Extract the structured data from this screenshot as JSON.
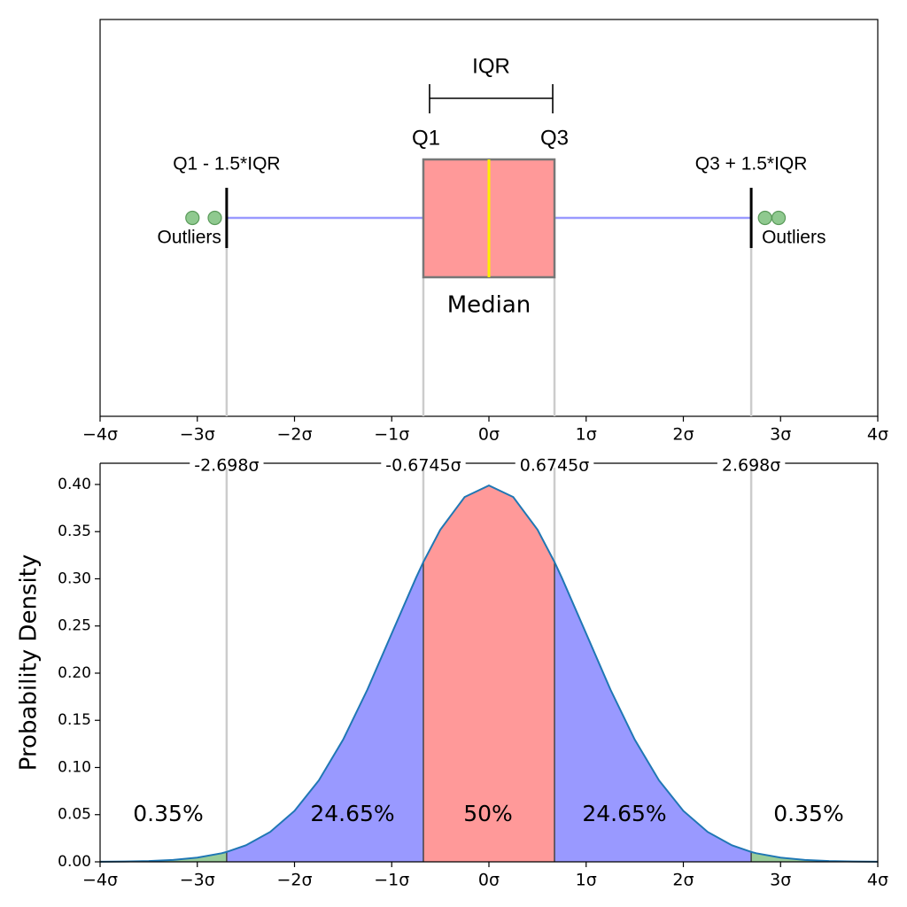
{
  "chart_data": [
    {
      "type": "box",
      "xlim": [
        -4,
        4
      ],
      "xticks": [
        {
          "value": -4,
          "label": "−4σ"
        },
        {
          "value": -3,
          "label": "−3σ"
        },
        {
          "value": -2,
          "label": "−2σ"
        },
        {
          "value": -1,
          "label": "−1σ"
        },
        {
          "value": 0,
          "label": "0σ"
        },
        {
          "value": 1,
          "label": "1σ"
        },
        {
          "value": 2,
          "label": "2σ"
        },
        {
          "value": 3,
          "label": "3σ"
        },
        {
          "value": 4,
          "label": "4σ"
        }
      ],
      "box": {
        "q1": -0.6745,
        "median": 0,
        "q3": 0.6745,
        "whisker_low": -2.698,
        "whisker_high": 2.698
      },
      "outliers": [
        -3.05,
        -2.82,
        2.84,
        2.98
      ],
      "box_color": "#ff9999",
      "median_color": "#ffee00",
      "whisker_color": "#9999ff",
      "outlier_color": "#8fc98f",
      "annotations": {
        "iqr": "IQR",
        "q1": "Q1",
        "q3": "Q3",
        "lower_fence": "Q1 - 1.5*IQR",
        "upper_fence": "Q3 + 1.5*IQR",
        "outliers": "Outliers",
        "median": "Median"
      }
    },
    {
      "type": "density",
      "y_label": "Probability Density",
      "xlim": [
        -4,
        4
      ],
      "xticks": [
        {
          "value": -4,
          "label": "−4σ"
        },
        {
          "value": -3,
          "label": "−3σ"
        },
        {
          "value": -2,
          "label": "−2σ"
        },
        {
          "value": -1,
          "label": "−1σ"
        },
        {
          "value": 0,
          "label": "0σ"
        },
        {
          "value": 1,
          "label": "1σ"
        },
        {
          "value": 2,
          "label": "2σ"
        },
        {
          "value": 3,
          "label": "3σ"
        },
        {
          "value": 4,
          "label": "4σ"
        }
      ],
      "ylim": [
        0,
        0.4225
      ],
      "yticks": [
        {
          "value": 0,
          "label": "0.00"
        },
        {
          "value": 0.05,
          "label": "0.05"
        },
        {
          "value": 0.1,
          "label": "0.10"
        },
        {
          "value": 0.15,
          "label": "0.15"
        },
        {
          "value": 0.2,
          "label": "0.20"
        },
        {
          "value": 0.25,
          "label": "0.25"
        },
        {
          "value": 0.3,
          "label": "0.30"
        },
        {
          "value": 0.35,
          "label": "0.35"
        },
        {
          "value": 0.4,
          "label": "0.40"
        }
      ],
      "x": [
        -4,
        -3.75,
        -3.5,
        -3.25,
        -3,
        -2.75,
        -2.698,
        -2.5,
        -2.25,
        -2,
        -1.75,
        -1.5,
        -1.25,
        -1,
        -0.75,
        -0.6745,
        -0.5,
        -0.25,
        0,
        0.25,
        0.5,
        0.6745,
        0.75,
        1,
        1.25,
        1.5,
        1.75,
        2,
        2.25,
        2.5,
        2.698,
        2.75,
        3,
        3.25,
        3.5,
        3.75,
        4
      ],
      "values": [
        0.000134,
        0.000353,
        0.00087,
        0.00203,
        0.00443,
        0.00909,
        0.01048,
        0.0175,
        0.0317,
        0.054,
        0.0863,
        0.1295,
        0.1826,
        0.242,
        0.3011,
        0.3178,
        0.3521,
        0.3867,
        0.3989,
        0.3867,
        0.3521,
        0.3178,
        0.3011,
        0.242,
        0.1826,
        0.1295,
        0.0863,
        0.054,
        0.0317,
        0.0175,
        0.01048,
        0.00909,
        0.00443,
        0.00203,
        0.00087,
        0.000353,
        0.000134
      ],
      "color": "#1f77b4",
      "boundary_labels": [
        {
          "value": -2.698,
          "label": "-2.698σ"
        },
        {
          "value": -0.6745,
          "label": "-0.6745σ"
        },
        {
          "value": 0.6745,
          "label": "0.6745σ"
        },
        {
          "value": 2.698,
          "label": "2.698σ"
        }
      ],
      "regions": {
        "bounds": [
          -4,
          -2.698,
          -0.6745,
          0.6745,
          2.698,
          4
        ],
        "values": [
          0.35,
          24.65,
          50,
          24.65,
          0.35
        ],
        "value_labels": [
          "0.35%",
          "24.65%",
          "50%",
          "24.65%",
          "0.35%"
        ],
        "colors": [
          "#99cc99",
          "#9999ff",
          "#ff9999",
          "#9999ff",
          "#99cc99"
        ]
      }
    }
  ]
}
